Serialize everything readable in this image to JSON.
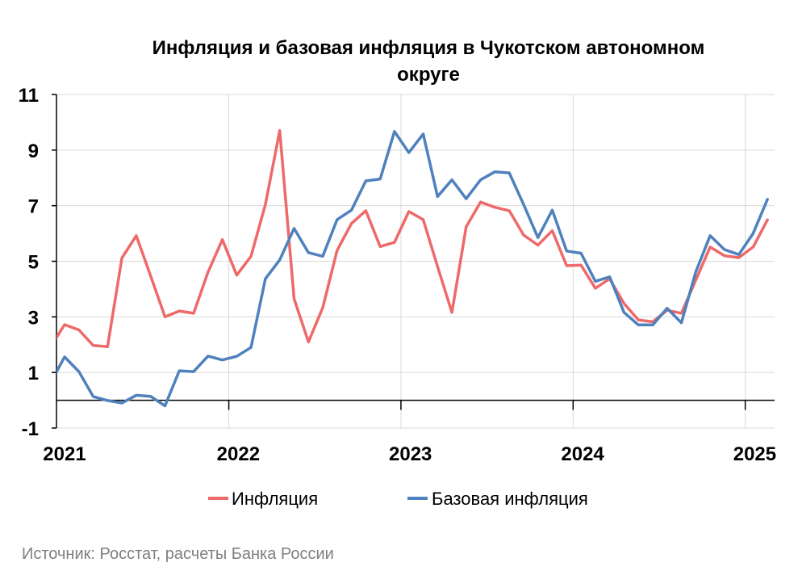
{
  "chart_data": {
    "type": "line",
    "title": "Инфляция и базовая инфляция в Чукотском автономном округе",
    "title_lines": [
      "Инфляция и базовая инфляция в Чукотском автономном",
      "округе"
    ],
    "xlabel": "",
    "ylabel": "",
    "ylim": [
      -1,
      11
    ],
    "yticks": [
      "-1",
      "1",
      "3",
      "5",
      "7",
      "9",
      "11"
    ],
    "xticks": [
      "2021",
      "2022",
      "2023",
      "2024",
      "2025"
    ],
    "x_start": "2020-12",
    "x_end": "2025-02",
    "grid": true,
    "legend_position": "bottom",
    "series": [
      {
        "name": "Инфляция",
        "color": "#EE6A6A",
        "values": [
          1.9,
          2.72,
          2.53,
          1.97,
          1.93,
          5.12,
          5.92,
          4.47,
          3.0,
          3.21,
          3.13,
          4.61,
          5.78,
          4.5,
          5.18,
          7.04,
          9.7,
          3.65,
          2.1,
          3.33,
          5.39,
          6.36,
          6.82,
          5.53,
          5.68,
          6.79,
          6.5,
          4.81,
          3.16,
          6.24,
          7.13,
          6.94,
          6.82,
          5.94,
          5.58,
          6.1,
          4.84,
          4.86,
          4.03,
          4.37,
          3.48,
          2.89,
          2.82,
          3.24,
          3.13,
          4.32,
          5.51,
          5.2,
          5.13,
          5.51,
          6.49
        ]
      },
      {
        "name": "Базовая инфляция",
        "color": "#4F81BD",
        "values": [
          0.6,
          1.56,
          1.03,
          0.13,
          -0.01,
          -0.1,
          0.18,
          0.14,
          -0.2,
          1.06,
          1.03,
          1.59,
          1.45,
          1.58,
          1.9,
          4.37,
          5.05,
          6.18,
          5.31,
          5.18,
          6.5,
          6.84,
          7.89,
          7.96,
          9.67,
          8.91,
          9.58,
          7.33,
          7.93,
          7.25,
          7.93,
          8.22,
          8.18,
          7.04,
          5.85,
          6.84,
          5.37,
          5.29,
          4.28,
          4.44,
          3.16,
          2.71,
          2.71,
          3.31,
          2.79,
          4.61,
          5.92,
          5.42,
          5.24,
          6.0,
          7.23
        ]
      }
    ]
  },
  "source": "Источник: Росстат, расчеты Банка России"
}
